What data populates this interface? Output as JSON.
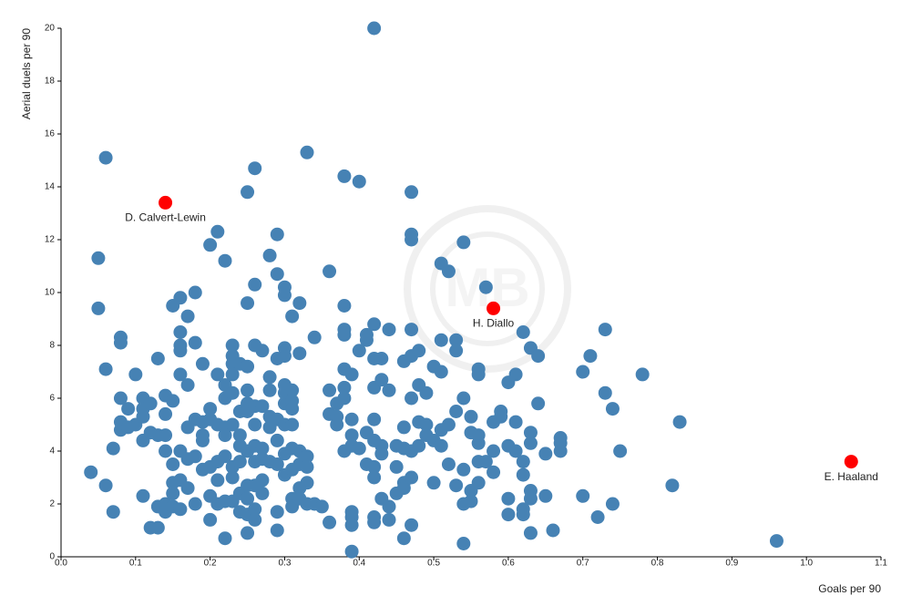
{
  "chart_data": {
    "type": "scatter",
    "x_label": "Goals per 90",
    "y_label": "Aerial duels per 90",
    "xlim": [
      0,
      1.1
    ],
    "ylim": [
      0,
      20
    ],
    "xticks": [
      {
        "value": 0,
        "label": "0.0"
      },
      0.1,
      0.2,
      0.3,
      0.4,
      0.5,
      0.6,
      0.7,
      0.8,
      0.9,
      {
        "value": 1,
        "label": "1.0"
      },
      1.1
    ],
    "yticks": [
      0,
      2,
      4,
      6,
      8,
      10,
      12,
      14,
      16,
      18,
      20
    ],
    "series": [
      {
        "color": "#4682b4",
        "x": [
          0.04,
          0.05,
          0.05,
          0.06,
          0.06,
          0.06,
          0.07,
          0.07,
          0.08,
          0.08,
          0.08,
          0.08,
          0.08,
          0.09,
          0.09,
          0.1,
          0.1,
          0.11,
          0.11,
          0.11,
          0.11,
          0.11,
          0.12,
          0.12,
          0.12,
          0.13,
          0.13,
          0.13,
          0.13,
          0.14,
          0.14,
          0.14,
          0.14,
          0.14,
          0.14,
          0.15,
          0.15,
          0.15,
          0.15,
          0.15,
          0.15,
          0.16,
          0.16,
          0.16,
          0.16,
          0.16,
          0.16,
          0.16,
          0.16,
          0.17,
          0.17,
          0.17,
          0.17,
          0.17,
          0.18,
          0.18,
          0.18,
          0.18,
          0.18,
          0.19,
          0.19,
          0.19,
          0.19,
          0.19,
          0.2,
          0.2,
          0.2,
          0.2,
          0.2,
          0.2,
          0.21,
          0.21,
          0.21,
          0.21,
          0.21,
          0.21,
          0.22,
          0.22,
          0.22,
          0.22,
          0.22,
          0.22,
          0.22,
          0.22,
          0.23,
          0.23,
          0.23,
          0.23,
          0.23,
          0.23,
          0.23,
          0.23,
          0.23,
          0.24,
          0.24,
          0.24,
          0.24,
          0.24,
          0.24,
          0.24,
          0.25,
          0.25,
          0.25,
          0.25,
          0.25,
          0.25,
          0.25,
          0.25,
          0.25,
          0.25,
          0.25,
          0.26,
          0.26,
          0.26,
          0.26,
          0.26,
          0.26,
          0.26,
          0.26,
          0.26,
          0.26,
          0.27,
          0.27,
          0.27,
          0.27,
          0.27,
          0.27,
          0.28,
          0.28,
          0.28,
          0.28,
          0.28,
          0.28,
          0.29,
          0.29,
          0.29,
          0.29,
          0.29,
          0.29,
          0.29,
          0.29,
          0.3,
          0.3,
          0.3,
          0.3,
          0.3,
          0.3,
          0.3,
          0.3,
          0.3,
          0.3,
          0.31,
          0.31,
          0.31,
          0.31,
          0.31,
          0.31,
          0.31,
          0.31,
          0.31,
          0.32,
          0.32,
          0.32,
          0.32,
          0.32,
          0.32,
          0.33,
          0.33,
          0.33,
          0.33,
          0.33,
          0.34,
          0.34,
          0.35,
          0.36,
          0.36,
          0.36,
          0.36,
          0.37,
          0.37,
          0.37,
          0.38,
          0.38,
          0.38,
          0.38,
          0.38,
          0.38,
          0.38,
          0.38,
          0.39,
          0.39,
          0.39,
          0.39,
          0.39,
          0.39,
          0.39,
          0.39,
          0.4,
          0.4,
          0.4,
          0.41,
          0.41,
          0.41,
          0.41,
          0.42,
          0.42,
          0.42,
          0.42,
          0.42,
          0.42,
          0.42,
          0.42,
          0.42,
          0.42,
          0.43,
          0.43,
          0.43,
          0.43,
          0.43,
          0.44,
          0.44,
          0.44,
          0.44,
          0.45,
          0.45,
          0.45,
          0.46,
          0.46,
          0.46,
          0.46,
          0.46,
          0.46,
          0.47,
          0.47,
          0.47,
          0.47,
          0.47,
          0.47,
          0.47,
          0.47,
          0.47,
          0.48,
          0.48,
          0.48,
          0.48,
          0.49,
          0.49,
          0.49,
          0.5,
          0.5,
          0.5,
          0.51,
          0.51,
          0.51,
          0.51,
          0.51,
          0.52,
          0.52,
          0.52,
          0.53,
          0.53,
          0.53,
          0.53,
          0.54,
          0.54,
          0.54,
          0.54,
          0.54,
          0.55,
          0.55,
          0.55,
          0.55,
          0.56,
          0.56,
          0.56,
          0.56,
          0.56,
          0.56,
          0.57,
          0.57,
          0.58,
          0.58,
          0.58,
          0.59,
          0.59,
          0.6,
          0.6,
          0.6,
          0.6,
          0.61,
          0.61,
          0.61,
          0.62,
          0.62,
          0.62,
          0.62,
          0.62,
          0.63,
          0.63,
          0.63,
          0.63,
          0.63,
          0.63,
          0.64,
          0.64,
          0.65,
          0.65,
          0.66,
          0.67,
          0.67,
          0.67,
          0.7,
          0.7,
          0.71,
          0.72,
          0.73,
          0.73,
          0.74,
          0.74,
          0.75,
          0.78,
          0.82,
          0.83,
          0.96
        ],
        "values": [
          3.2,
          11.3,
          9.4,
          15.1,
          7.1,
          2.7,
          4.1,
          1.7,
          8.3,
          8.1,
          6.0,
          5.1,
          4.8,
          5.6,
          4.9,
          6.9,
          5.0,
          6.0,
          5.6,
          5.3,
          4.4,
          2.3,
          5.8,
          4.7,
          1.1,
          7.5,
          4.6,
          1.9,
          1.1,
          6.1,
          5.4,
          4.6,
          4.0,
          2.0,
          1.7,
          9.5,
          5.9,
          3.5,
          2.8,
          2.4,
          1.9,
          9.8,
          8.5,
          8.0,
          7.8,
          6.9,
          4.0,
          2.9,
          1.8,
          9.1,
          6.5,
          4.9,
          3.7,
          2.6,
          10.0,
          8.1,
          5.2,
          3.8,
          2.0,
          7.3,
          5.1,
          4.6,
          4.4,
          3.3,
          11.8,
          5.6,
          5.2,
          3.4,
          2.3,
          1.4,
          12.3,
          6.9,
          5.0,
          3.6,
          2.9,
          2.0,
          11.2,
          6.5,
          6.0,
          4.9,
          4.6,
          3.8,
          2.1,
          0.7,
          8.0,
          7.6,
          7.3,
          6.9,
          6.2,
          5.0,
          3.4,
          3.0,
          2.1,
          7.3,
          5.5,
          4.6,
          4.2,
          3.6,
          2.4,
          1.7,
          13.8,
          9.6,
          7.2,
          6.3,
          5.8,
          5.5,
          4.0,
          2.7,
          2.2,
          1.6,
          0.9,
          14.7,
          10.3,
          8.0,
          5.7,
          5.0,
          4.2,
          3.6,
          2.7,
          1.8,
          1.4,
          7.8,
          5.7,
          4.1,
          3.7,
          2.9,
          2.4,
          11.4,
          6.8,
          6.3,
          5.3,
          4.9,
          3.6,
          12.2,
          10.7,
          7.5,
          5.2,
          4.4,
          3.5,
          1.7,
          1.0,
          10.2,
          9.9,
          7.9,
          7.6,
          6.5,
          6.2,
          5.8,
          5.0,
          3.9,
          3.1,
          9.1,
          6.3,
          5.9,
          5.6,
          5.0,
          4.1,
          3.3,
          2.2,
          1.9,
          9.6,
          7.7,
          4.0,
          3.5,
          2.6,
          2.2,
          15.3,
          3.8,
          3.4,
          2.8,
          2.0,
          8.3,
          2.0,
          1.9,
          10.8,
          6.3,
          5.4,
          1.3,
          5.8,
          5.3,
          5.0,
          14.4,
          9.5,
          8.6,
          8.4,
          7.1,
          6.4,
          6.0,
          4.0,
          6.9,
          5.2,
          4.6,
          4.2,
          1.7,
          1.5,
          1.2,
          0.2,
          14.2,
          7.8,
          4.1,
          8.4,
          8.2,
          4.7,
          3.5,
          20.0,
          8.8,
          7.5,
          6.4,
          5.2,
          4.4,
          3.4,
          3.0,
          1.5,
          1.3,
          7.5,
          6.7,
          4.2,
          3.9,
          2.2,
          8.6,
          6.3,
          1.9,
          1.4,
          4.2,
          3.4,
          2.4,
          7.4,
          4.9,
          4.1,
          2.8,
          2.6,
          0.7,
          13.8,
          12.2,
          12.0,
          8.6,
          7.6,
          6.0,
          4.0,
          3.0,
          1.2,
          7.8,
          6.5,
          5.1,
          4.2,
          6.2,
          5.0,
          4.6,
          7.2,
          4.4,
          2.8,
          11.1,
          8.2,
          7.0,
          4.8,
          4.2,
          10.8,
          5.0,
          3.5,
          8.2,
          7.8,
          5.5,
          2.7,
          11.9,
          6.0,
          3.3,
          2.0,
          0.5,
          5.3,
          4.7,
          2.5,
          2.1,
          7.1,
          6.9,
          4.6,
          4.3,
          3.6,
          2.8,
          10.2,
          3.6,
          5.1,
          4.0,
          3.2,
          5.5,
          5.3,
          6.6,
          4.2,
          2.2,
          1.6,
          6.9,
          5.1,
          4.0,
          8.5,
          3.6,
          3.1,
          1.8,
          1.6,
          7.9,
          4.7,
          4.3,
          2.5,
          2.2,
          0.9,
          7.6,
          5.8,
          3.9,
          2.3,
          1.0,
          4.5,
          4.3,
          4.0,
          7.0,
          2.3,
          7.6,
          1.5,
          8.6,
          6.2,
          5.6,
          2.0,
          4.0,
          6.9,
          2.7,
          5.1,
          0.6
        ]
      },
      {
        "color": "#ff0000",
        "x": [
          0.14,
          0.58,
          1.06
        ],
        "values": [
          13.4,
          9.4,
          3.6
        ],
        "labels": [
          "D. Calvert-Lewin",
          "H. Diallo",
          "E. Haaland"
        ]
      }
    ]
  }
}
